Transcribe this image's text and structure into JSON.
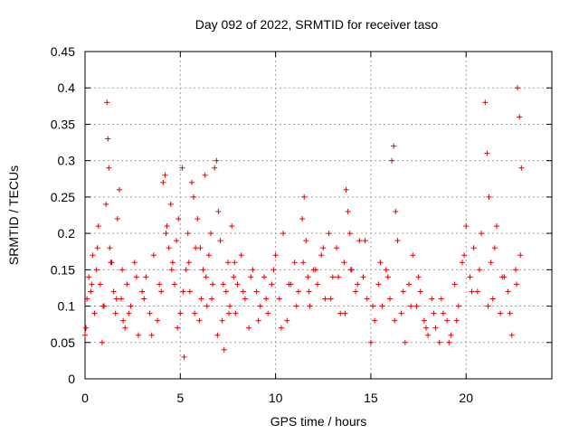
{
  "chart_data": {
    "type": "scatter",
    "title": "Day 092 of 2022, SRMTID for receiver taso",
    "xlabel": "GPS time / hours",
    "ylabel": "SRMTID / TECUs",
    "xlim": [
      0,
      24.5
    ],
    "ylim": [
      0,
      0.45
    ],
    "xticks": [
      0,
      5,
      10,
      15,
      20
    ],
    "xtick_labels": [
      "0",
      "5",
      "10",
      "15",
      "20"
    ],
    "yticks": [
      0,
      0.05,
      0.1,
      0.15,
      0.2,
      0.25,
      0.3,
      0.35,
      0.4,
      0.45
    ],
    "ytick_labels": [
      "0",
      "0.05",
      "0.1",
      "0.15",
      "0.2",
      "0.25",
      "0.3",
      "0.35",
      "0.4",
      "0.45"
    ],
    "grid": true,
    "marker": "+",
    "color": "#e00000",
    "series": [
      {
        "name": "SRMTID",
        "x": [
          0.0,
          0.1,
          0.2,
          0.3,
          0.4,
          0.5,
          0.6,
          0.7,
          0.8,
          0.9,
          1.0,
          1.1,
          1.15,
          1.2,
          1.25,
          1.3,
          1.4,
          1.5,
          1.6,
          1.7,
          1.8,
          1.9,
          2.0,
          2.1,
          2.2,
          2.4,
          2.6,
          2.8,
          3.0,
          3.2,
          3.4,
          3.6,
          3.8,
          4.0,
          4.1,
          4.2,
          4.3,
          4.4,
          4.5,
          4.6,
          4.7,
          4.8,
          4.9,
          5.0,
          5.1,
          5.2,
          5.3,
          5.4,
          5.5,
          5.6,
          5.7,
          5.8,
          5.9,
          6.0,
          6.1,
          6.2,
          6.3,
          6.4,
          6.5,
          6.6,
          6.7,
          6.8,
          6.9,
          7.0,
          7.1,
          7.2,
          7.3,
          7.4,
          7.5,
          7.6,
          7.7,
          7.8,
          7.9,
          8.0,
          8.2,
          8.4,
          8.6,
          8.8,
          9.0,
          9.2,
          9.4,
          9.6,
          9.8,
          10.0,
          10.2,
          10.4,
          10.6,
          10.8,
          11.0,
          11.2,
          11.4,
          11.5,
          11.6,
          11.7,
          11.8,
          12.0,
          12.2,
          12.4,
          12.6,
          12.8,
          13.0,
          13.2,
          13.4,
          13.6,
          13.7,
          13.8,
          13.9,
          14.0,
          14.2,
          14.4,
          14.6,
          14.8,
          15.0,
          15.2,
          15.4,
          15.6,
          15.8,
          16.0,
          16.1,
          16.2,
          16.3,
          16.4,
          16.6,
          16.8,
          17.0,
          17.2,
          17.4,
          17.6,
          17.8,
          18.0,
          18.2,
          18.4,
          18.6,
          18.8,
          19.0,
          19.2,
          19.4,
          19.6,
          19.8,
          20.0,
          20.2,
          20.4,
          20.6,
          20.8,
          21.0,
          21.1,
          21.2,
          21.3,
          21.4,
          21.6,
          21.8,
          22.0,
          22.2,
          22.4,
          22.6,
          22.7,
          22.8,
          22.9,
          0.05,
          0.35,
          0.65,
          0.95,
          1.35,
          1.65,
          1.95,
          2.3,
          2.7,
          3.1,
          3.5,
          3.9,
          4.25,
          4.55,
          4.85,
          5.15,
          5.45,
          5.75,
          6.05,
          6.35,
          6.65,
          6.95,
          7.25,
          7.55,
          7.85,
          8.3,
          8.7,
          9.1,
          9.5,
          9.9,
          10.3,
          10.7,
          11.1,
          11.45,
          11.75,
          12.1,
          12.5,
          12.9,
          13.3,
          13.65,
          13.95,
          14.3,
          14.7,
          15.1,
          15.5,
          15.9,
          16.25,
          16.7,
          17.1,
          17.5,
          17.9,
          18.3,
          18.7,
          19.1,
          19.5,
          19.9,
          20.3,
          20.7,
          21.15,
          21.5,
          21.9,
          22.3,
          22.65,
          22.85
        ],
        "y": [
          0.06,
          0.11,
          0.14,
          0.12,
          0.17,
          0.09,
          0.15,
          0.21,
          0.13,
          0.05,
          0.1,
          0.24,
          0.38,
          0.33,
          0.29,
          0.18,
          0.16,
          0.12,
          0.09,
          0.22,
          0.26,
          0.11,
          0.08,
          0.07,
          0.13,
          0.1,
          0.16,
          0.06,
          0.12,
          0.14,
          0.09,
          0.17,
          0.08,
          0.12,
          0.27,
          0.28,
          0.21,
          0.18,
          0.24,
          0.16,
          0.13,
          0.19,
          0.22,
          0.09,
          0.29,
          0.03,
          0.15,
          0.2,
          0.12,
          0.27,
          0.25,
          0.18,
          0.22,
          0.08,
          0.11,
          0.15,
          0.28,
          0.1,
          0.17,
          0.2,
          0.13,
          0.29,
          0.3,
          0.23,
          0.19,
          0.08,
          0.04,
          0.12,
          0.16,
          0.1,
          0.21,
          0.14,
          0.09,
          0.13,
          0.17,
          0.11,
          0.07,
          0.15,
          0.12,
          0.1,
          0.14,
          0.09,
          0.13,
          0.17,
          0.11,
          0.2,
          0.08,
          0.13,
          0.16,
          0.12,
          0.22,
          0.25,
          0.19,
          0.14,
          0.1,
          0.15,
          0.13,
          0.17,
          0.11,
          0.2,
          0.14,
          0.18,
          0.09,
          0.16,
          0.26,
          0.23,
          0.2,
          0.15,
          0.12,
          0.19,
          0.14,
          0.11,
          0.05,
          0.08,
          0.13,
          0.1,
          0.15,
          0.11,
          0.3,
          0.32,
          0.23,
          0.19,
          0.09,
          0.05,
          0.13,
          0.17,
          0.1,
          0.12,
          0.08,
          0.06,
          0.11,
          0.07,
          0.05,
          0.09,
          0.08,
          0.06,
          0.13,
          0.1,
          0.16,
          0.21,
          0.14,
          0.18,
          0.12,
          0.2,
          0.38,
          0.31,
          0.25,
          0.16,
          0.11,
          0.21,
          0.09,
          0.14,
          0.12,
          0.06,
          0.15,
          0.4,
          0.36,
          0.29,
          0.07,
          0.13,
          0.18,
          0.1,
          0.16,
          0.11,
          0.15,
          0.09,
          0.14,
          0.11,
          0.06,
          0.13,
          0.2,
          0.15,
          0.07,
          0.12,
          0.16,
          0.09,
          0.18,
          0.14,
          0.11,
          0.06,
          0.13,
          0.09,
          0.16,
          0.12,
          0.14,
          0.08,
          0.11,
          0.15,
          0.07,
          0.13,
          0.1,
          0.16,
          0.12,
          0.15,
          0.18,
          0.11,
          0.14,
          0.09,
          0.15,
          0.13,
          0.19,
          0.1,
          0.16,
          0.14,
          0.08,
          0.12,
          0.1,
          0.14,
          0.07,
          0.09,
          0.11,
          0.05,
          0.08,
          0.17,
          0.12,
          0.15,
          0.1,
          0.18,
          0.14,
          0.09,
          0.13,
          0.17
        ]
      }
    ]
  }
}
